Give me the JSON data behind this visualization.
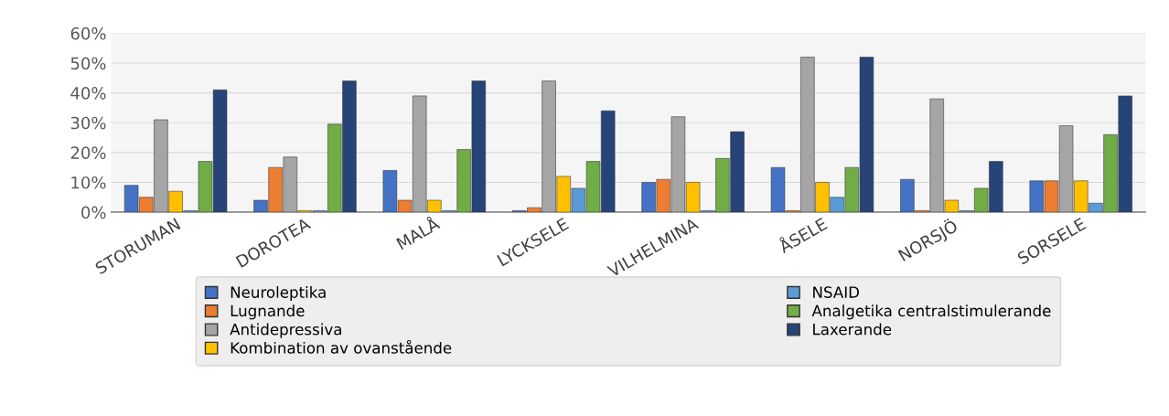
{
  "chart_data": {
    "type": "bar",
    "categories": [
      "STORUMAN",
      "DOROTEA",
      "MALÅ",
      "LYCKSELE",
      "VILHELMINA",
      "ÅSELE",
      "NORSJÖ",
      "SORSELE"
    ],
    "series": [
      {
        "name": "Neuroleptika",
        "color": "#4472c4",
        "values": [
          9,
          4,
          14,
          0.5,
          10,
          15,
          11,
          10.5
        ]
      },
      {
        "name": "Lugnande",
        "color": "#ed7d31",
        "values": [
          5,
          15,
          4,
          1.5,
          11,
          0.5,
          0.5,
          10.5
        ]
      },
      {
        "name": "Antidepressiva",
        "color": "#a5a5a5",
        "values": [
          31,
          18.5,
          39,
          44,
          32,
          52,
          38,
          29
        ]
      },
      {
        "name": "Kombination av ovanstående",
        "color": "#ffc000",
        "values": [
          7,
          0.5,
          4,
          12,
          10,
          10,
          4,
          10.5
        ]
      },
      {
        "name": "NSAID",
        "color": "#5b9bd5",
        "values": [
          0.5,
          0.5,
          0.5,
          8,
          0.5,
          5,
          0.5,
          3
        ]
      },
      {
        "name": "Analgetika centralstimulerande",
        "color": "#70ad47",
        "values": [
          17,
          29.5,
          21,
          17,
          18,
          15,
          8,
          26
        ]
      },
      {
        "name": "Laxerande",
        "color": "#264478",
        "values": [
          41,
          44,
          44,
          34,
          27,
          52,
          17,
          39
        ]
      }
    ],
    "ylim": [
      0,
      60
    ],
    "yticks": [
      {
        "value": 0,
        "label": "0%"
      },
      {
        "value": 10,
        "label": "10%"
      },
      {
        "value": 20,
        "label": "20%"
      },
      {
        "value": 30,
        "label": "30%"
      },
      {
        "value": 40,
        "label": "40%"
      },
      {
        "value": 50,
        "label": "50%"
      },
      {
        "value": 60,
        "label": "60%"
      }
    ],
    "grid": "y",
    "legend": "bottom"
  }
}
